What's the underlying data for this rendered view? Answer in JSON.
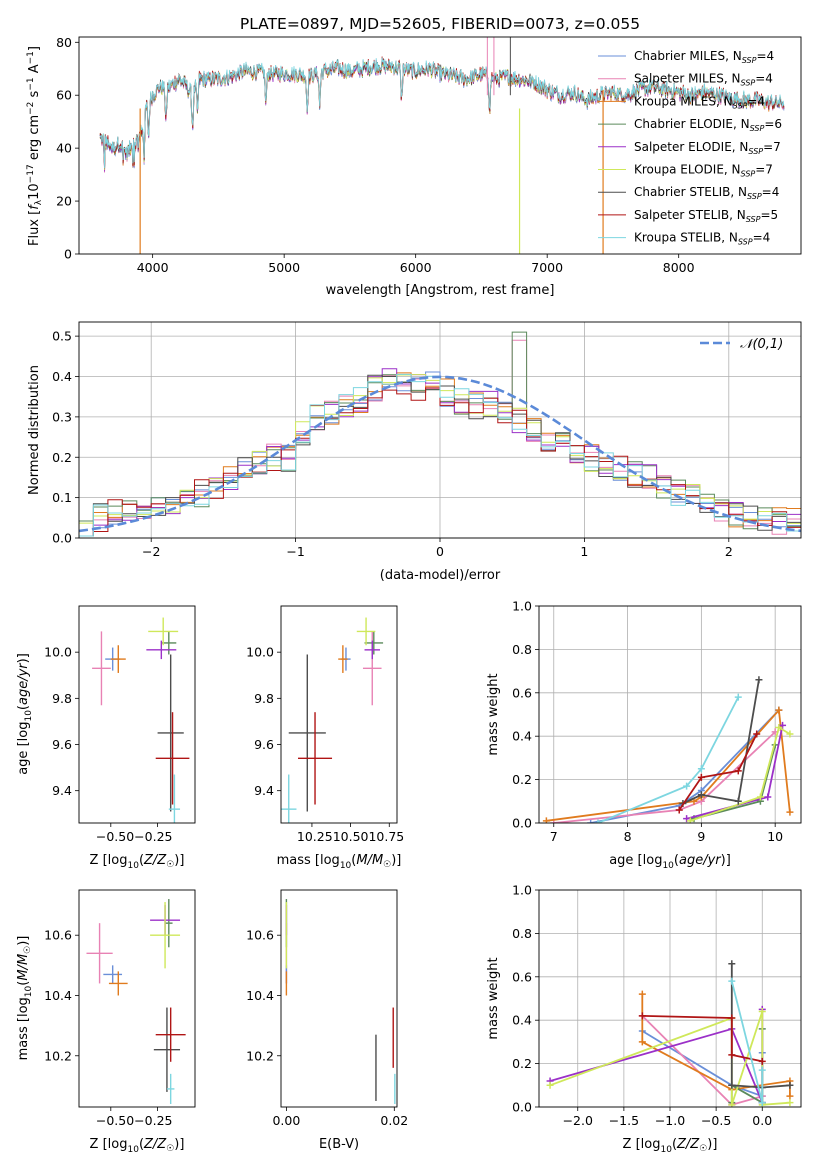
{
  "figure_title": "PLATE=0897, MJD=52605, FIBERID=0073, z=0.055",
  "colors": {
    "Chabrier MILES": "#6a8fd8",
    "Salpeter MILES": "#e882b4",
    "Kroupa MILES": "#e07b1e",
    "Chabrier ELODIE": "#5b8a5b",
    "Salpeter ELODIE": "#9b30c8",
    "Kroupa ELODIE": "#cfe85a",
    "Chabrier STELIB": "#4d4d4d",
    "Salpeter STELIB": "#b01515",
    "Kroupa STELIB": "#7dd6e0",
    "gaussian": "#5b8ad8"
  },
  "chart_data": [
    {
      "id": "spectrum",
      "type": "line",
      "xlabel": "wavelength [Angstrom, rest frame]",
      "ylabel": "Flux [f_λ 10^-17 erg cm^-2 s^-1 A^-1]",
      "ylabel_parts": [
        "Flux [",
        "f",
        "λ",
        "10",
        "−17",
        " erg cm",
        "−2",
        " s",
        "−1",
        " A",
        "−1",
        "]"
      ],
      "xlim": [
        3440,
        8930
      ],
      "ylim": [
        0,
        82
      ],
      "xticks": [
        4000,
        5000,
        6000,
        7000,
        8000
      ],
      "yticks": [
        0,
        20,
        40,
        60,
        80
      ],
      "legend_position": "top-right",
      "series": [
        {
          "name": "Chabrier MILES",
          "nssp": "4"
        },
        {
          "name": "Salpeter MILES",
          "nssp": "4"
        },
        {
          "name": "Kroupa MILES",
          "nssp": "4"
        },
        {
          "name": "Chabrier ELODIE",
          "nssp": "6"
        },
        {
          "name": "Salpeter ELODIE",
          "nssp": "7"
        },
        {
          "name": "Kroupa ELODIE",
          "nssp": "7"
        },
        {
          "name": "Chabrier STELIB",
          "nssp": "4"
        },
        {
          "name": "Salpeter STELIB",
          "nssp": "5"
        },
        {
          "name": "Kroupa STELIB",
          "nssp": "4"
        }
      ],
      "envelope": {
        "x": [
          3600,
          3650,
          3700,
          3750,
          3800,
          3850,
          3900,
          3950,
          4000,
          4050,
          4100,
          4150,
          4200,
          4250,
          4300,
          4350,
          4400,
          4500,
          4600,
          4700,
          4800,
          4900,
          5000,
          5100,
          5200,
          5300,
          5400,
          5500,
          5600,
          5700,
          5800,
          5900,
          6000,
          6100,
          6200,
          6300,
          6400,
          6500,
          6600,
          6700,
          6800,
          6900,
          7000,
          7100,
          7200,
          7300,
          7400,
          7500,
          7600,
          7700,
          7800,
          7900,
          8000,
          8100,
          8200,
          8300,
          8400,
          8500,
          8600,
          8700,
          8800
        ],
        "y": [
          44,
          42,
          40,
          42,
          38,
          41,
          44,
          55,
          60,
          63,
          62,
          64,
          66,
          64,
          60,
          66,
          66,
          66,
          67,
          69,
          69,
          68,
          68,
          68,
          67,
          69,
          70,
          69,
          70,
          71,
          71,
          70,
          69,
          70,
          68,
          67,
          66,
          68,
          66,
          67,
          66,
          65,
          62,
          60,
          61,
          58,
          60,
          61,
          60,
          62,
          63,
          62,
          61,
          60,
          61,
          60,
          59,
          58,
          58,
          57,
          57
        ]
      },
      "absorption_lines": [
        3934,
        3969,
        4102,
        4304,
        4341,
        4861,
        5175,
        5270,
        5893,
        6563
      ],
      "spikes": [
        {
          "x": 6545,
          "top": 82,
          "bottom": 60,
          "series": "Salpeter MILES"
        },
        {
          "x": 6595,
          "top": 82,
          "bottom": 60,
          "series": "Salpeter MILES"
        },
        {
          "x": 6720,
          "top": 82,
          "bottom": 60,
          "series": "Chabrier STELIB"
        }
      ],
      "drops": [
        {
          "x": 3905,
          "series": "Kroupa MILES"
        },
        {
          "x": 6790,
          "series": "Kroupa ELODIE"
        },
        {
          "x": 7425,
          "series": "Kroupa MILES"
        }
      ]
    },
    {
      "id": "residual_hist",
      "type": "line",
      "xlabel": "(data-model)/error",
      "ylabel": "Normed distribution",
      "xlim": [
        -2.5,
        2.5
      ],
      "ylim": [
        0,
        0.535
      ],
      "xticks": [
        -2,
        -1,
        0,
        1,
        2
      ],
      "yticks": [
        0.0,
        0.1,
        0.2,
        0.3,
        0.4,
        0.5
      ],
      "grid": true,
      "legend_position": "top-right",
      "legend": "𝒩(0,1)",
      "bin_width": 0.1,
      "x_start": -2.5,
      "base_profile": [
        0.01,
        0.04,
        0.05,
        0.06,
        0.06,
        0.07,
        0.07,
        0.075,
        0.08,
        0.085,
        0.09,
        0.09,
        0.1,
        0.11,
        0.12,
        0.14,
        0.15,
        0.16,
        0.17,
        0.18,
        0.19,
        0.2,
        0.2,
        0.24,
        0.26,
        0.28,
        0.3,
        0.31,
        0.32,
        0.33,
        0.34,
        0.36,
        0.37,
        0.38,
        0.39,
        0.38,
        0.37,
        0.37,
        0.39,
        0.37,
        0.36,
        0.35,
        0.34,
        0.33,
        0.33,
        0.33,
        0.32,
        0.3,
        0.29,
        0.28,
        0.27,
        0.25,
        0.24,
        0.23,
        0.22,
        0.21,
        0.2,
        0.19,
        0.18,
        0.17,
        0.16,
        0.16,
        0.15,
        0.14,
        0.13,
        0.12,
        0.11,
        0.1,
        0.09,
        0.08,
        0.07,
        0.07,
        0.06,
        0.05,
        0.05,
        0.05,
        0.05,
        0.04,
        0.04,
        0.03
      ],
      "gaussian": {
        "mu": 0,
        "sigma": 1
      }
    },
    {
      "id": "age_vs_Z",
      "type": "scatter",
      "xlabel": "Z [log10(Z/Z☉)]",
      "ylabel": "age  [log10(age/yr)]",
      "xlim": [
        -0.67,
        -0.05
      ],
      "ylim": [
        9.26,
        10.2
      ],
      "xticks": [
        -0.5,
        -0.25
      ],
      "xtick_labels": [
        "−0.50",
        "−0.25"
      ],
      "yticks": [
        9.4,
        9.6,
        9.8,
        10.0
      ],
      "xtick_text": "−0.50−0.25",
      "points": [
        {
          "series": "Salpeter MILES",
          "x": -0.55,
          "y": 9.93,
          "xerr": 0.05,
          "yerr": 0.16
        },
        {
          "series": "Chabrier MILES",
          "x": -0.49,
          "y": 9.97,
          "xerr": 0.04,
          "yerr": 0.05
        },
        {
          "series": "Kroupa MILES",
          "x": -0.46,
          "y": 9.97,
          "xerr": 0.04,
          "yerr": 0.06
        },
        {
          "series": "Chabrier ELODIE",
          "x": -0.19,
          "y": 10.04,
          "xerr": 0.04,
          "yerr": 0.05
        },
        {
          "series": "Salpeter ELODIE",
          "x": -0.23,
          "y": 10.01,
          "xerr": 0.08,
          "yerr": 0.04
        },
        {
          "series": "Kroupa ELODIE",
          "x": -0.22,
          "y": 10.09,
          "xerr": 0.08,
          "yerr": 0.06
        },
        {
          "series": "Chabrier STELIB",
          "x": -0.18,
          "y": 9.65,
          "xerr": 0.07,
          "yerr": 0.34
        },
        {
          "series": "Salpeter STELIB",
          "x": -0.17,
          "y": 9.54,
          "xerr": 0.09,
          "yerr": 0.2
        },
        {
          "series": "Kroupa STELIB",
          "x": -0.16,
          "y": 9.32,
          "xerr": 0.03,
          "yerr": 0.15
        }
      ]
    },
    {
      "id": "age_vs_mass",
      "type": "scatter",
      "xlabel": "mass [log10(M/M☉)]",
      "xlim": [
        10.05,
        10.8
      ],
      "ylim": [
        9.26,
        10.2
      ],
      "xticks": [
        10.25,
        10.5,
        10.75
      ],
      "xtick_labels": [
        "10.25",
        "10.50",
        "10.75"
      ],
      "yticks": [
        9.4,
        9.6,
        9.8,
        10.0
      ],
      "xtick_text": "10.2510.5010.75",
      "points": [
        {
          "series": "Salpeter MILES",
          "x": 10.64,
          "y": 9.93,
          "xerr": 0.06,
          "yerr": 0.16
        },
        {
          "series": "Chabrier MILES",
          "x": 10.47,
          "y": 9.97,
          "xerr": 0.03,
          "yerr": 0.05
        },
        {
          "series": "Kroupa MILES",
          "x": 10.45,
          "y": 9.97,
          "xerr": 0.03,
          "yerr": 0.06
        },
        {
          "series": "Chabrier ELODIE",
          "x": 10.65,
          "y": 10.04,
          "xerr": 0.06,
          "yerr": 0.05
        },
        {
          "series": "Salpeter ELODIE",
          "x": 10.64,
          "y": 10.01,
          "xerr": 0.05,
          "yerr": 0.04
        },
        {
          "series": "Kroupa ELODIE",
          "x": 10.6,
          "y": 10.09,
          "xerr": 0.06,
          "yerr": 0.06
        },
        {
          "series": "Chabrier STELIB",
          "x": 10.22,
          "y": 9.65,
          "xerr": 0.12,
          "yerr": 0.34
        },
        {
          "series": "Salpeter STELIB",
          "x": 10.27,
          "y": 9.54,
          "xerr": 0.11,
          "yerr": 0.2
        },
        {
          "series": "Kroupa STELIB",
          "x": 10.1,
          "y": 9.32,
          "xerr": 0.05,
          "yerr": 0.15
        }
      ]
    },
    {
      "id": "weight_vs_age",
      "type": "line",
      "xlabel": "age  [log10(age/yr)]",
      "ylabel": "mass weight",
      "xlim": [
        6.8,
        10.35
      ],
      "ylim": [
        0,
        1.0
      ],
      "xticks": [
        7,
        8,
        9,
        10
      ],
      "yticks": [
        0.0,
        0.2,
        0.4,
        0.6,
        0.8,
        1.0
      ],
      "grid": true,
      "series": [
        {
          "name": "Chabrier MILES",
          "x": [
            7.5,
            8.7,
            9.0,
            10.05
          ],
          "y": [
            0.0,
            0.08,
            0.15,
            0.52
          ]
        },
        {
          "name": "Salpeter MILES",
          "x": [
            7.0,
            8.7,
            9.0,
            10.0
          ],
          "y": [
            0.0,
            0.06,
            0.1,
            0.42
          ]
        },
        {
          "name": "Kroupa MILES",
          "x": [
            6.9,
            8.9,
            9.0,
            10.05,
            10.2
          ],
          "y": [
            0.01,
            0.1,
            0.12,
            0.52,
            0.05
          ]
        },
        {
          "name": "Chabrier ELODIE",
          "x": [
            8.9,
            9.8,
            10.0
          ],
          "y": [
            0.02,
            0.1,
            0.36
          ]
        },
        {
          "name": "Salpeter ELODIE",
          "x": [
            8.8,
            9.9,
            10.1
          ],
          "y": [
            0.02,
            0.12,
            0.45
          ]
        },
        {
          "name": "Kroupa ELODIE",
          "x": [
            8.85,
            9.8,
            10.05,
            10.2
          ],
          "y": [
            0.01,
            0.12,
            0.44,
            0.41
          ]
        },
        {
          "name": "Chabrier STELIB",
          "x": [
            8.75,
            9.0,
            9.5,
            9.78
          ],
          "y": [
            0.09,
            0.13,
            0.1,
            0.66
          ]
        },
        {
          "name": "Salpeter STELIB",
          "x": [
            8.7,
            9.0,
            9.5,
            9.75
          ],
          "y": [
            0.06,
            0.21,
            0.24,
            0.41
          ]
        },
        {
          "name": "Kroupa STELIB",
          "x": [
            7.6,
            8.8,
            9.0,
            9.5
          ],
          "y": [
            0.0,
            0.17,
            0.25,
            0.58
          ]
        }
      ]
    },
    {
      "id": "mass_vs_Z",
      "type": "scatter",
      "xlabel": "Z [log10(Z/Z☉)]",
      "ylabel": "mass [log10(M/M☉)]",
      "xlim": [
        -0.67,
        -0.05
      ],
      "ylim": [
        10.03,
        10.75
      ],
      "xticks": [
        -0.5,
        -0.25
      ],
      "xtick_labels": [
        "−0.50",
        "−0.25"
      ],
      "yticks": [
        10.2,
        10.4,
        10.6
      ],
      "xtick_text": "−0.50−0.25",
      "points": [
        {
          "series": "Salpeter MILES",
          "x": -0.56,
          "y": 10.54,
          "xerr": 0.07,
          "yerr": 0.1
        },
        {
          "series": "Chabrier MILES",
          "x": -0.49,
          "y": 10.47,
          "xerr": 0.05,
          "yerr": 0.03
        },
        {
          "series": "Kroupa MILES",
          "x": -0.46,
          "y": 10.44,
          "xerr": 0.05,
          "yerr": 0.04
        },
        {
          "series": "Chabrier ELODIE",
          "x": -0.19,
          "y": 10.64,
          "xerr": 0.02,
          "yerr": 0.08
        },
        {
          "series": "Salpeter ELODIE",
          "x": -0.21,
          "y": 10.65,
          "xerr": 0.08,
          "yerr": 0.05
        },
        {
          "series": "Kroupa ELODIE",
          "x": -0.21,
          "y": 10.6,
          "xerr": 0.08,
          "yerr": 0.11
        },
        {
          "series": "Chabrier STELIB",
          "x": -0.2,
          "y": 10.22,
          "xerr": 0.07,
          "yerr": 0.14
        },
        {
          "series": "Salpeter STELIB",
          "x": -0.18,
          "y": 10.27,
          "xerr": 0.08,
          "yerr": 0.09
        },
        {
          "series": "Kroupa STELIB",
          "x": -0.18,
          "y": 10.09,
          "xerr": 0.02,
          "yerr": 0.05
        }
      ]
    },
    {
      "id": "mass_vs_ebv",
      "type": "scatter",
      "xlabel": "E(B-V)",
      "xlim": [
        -0.001,
        0.0205
      ],
      "ylim": [
        10.03,
        10.75
      ],
      "xticks": [
        0.0,
        0.02
      ],
      "xtick_labels": [
        "0.00",
        "0.02"
      ],
      "yticks": [
        10.2,
        10.4,
        10.6
      ],
      "points": [
        {
          "series": "Salpeter MILES",
          "x": 0.0,
          "y": 10.54,
          "xerr": 0.0,
          "yerr": 0.1
        },
        {
          "series": "Chabrier MILES",
          "x": 0.0,
          "y": 10.47,
          "xerr": 0.0,
          "yerr": 0.03
        },
        {
          "series": "Kroupa MILES",
          "x": 0.0,
          "y": 10.44,
          "xerr": 0.0,
          "yerr": 0.04
        },
        {
          "series": "Chabrier ELODIE",
          "x": 0.0,
          "y": 10.64,
          "xerr": 0.0,
          "yerr": 0.08
        },
        {
          "series": "Salpeter ELODIE",
          "x": 0.0,
          "y": 10.65,
          "xerr": 0.0,
          "yerr": 0.05
        },
        {
          "series": "Kroupa ELODIE",
          "x": 0.0,
          "y": 10.6,
          "xerr": 0.0,
          "yerr": 0.11
        },
        {
          "series": "Chabrier STELIB",
          "x": 0.0166,
          "y": 10.16,
          "xerr": 0.0,
          "yerr": 0.11
        },
        {
          "series": "Salpeter STELIB",
          "x": 0.0198,
          "y": 10.26,
          "xerr": 0.0,
          "yerr": 0.1
        },
        {
          "series": "Kroupa STELIB",
          "x": 0.0201,
          "y": 10.09,
          "xerr": 0.0,
          "yerr": 0.05
        }
      ]
    },
    {
      "id": "weight_vs_Z",
      "type": "line",
      "xlabel": "Z [log10(Z/Z☉)]",
      "ylabel": "mass weight",
      "xlim": [
        -2.42,
        0.42
      ],
      "ylim": [
        0,
        1.0
      ],
      "xticks": [
        -2.0,
        -1.5,
        -1.0,
        -0.5,
        0.0
      ],
      "xtick_labels": [
        "−2.0",
        "−1.5",
        "−1.0",
        "−0.5",
        "0.0"
      ],
      "yticks": [
        0.0,
        0.2,
        0.4,
        0.6,
        0.8,
        1.0
      ],
      "grid": true,
      "series": [
        {
          "name": "Chabrier MILES",
          "x": [
            -1.3,
            -0.33,
            0.0,
            0.0
          ],
          "y": [
            0.35,
            0.1,
            0.05,
            0.25
          ]
        },
        {
          "name": "Salpeter MILES",
          "x": [
            -1.3,
            -0.33,
            0.0
          ],
          "y": [
            0.42,
            0.01,
            0.05
          ]
        },
        {
          "name": "Kroupa MILES",
          "x": [
            -1.3,
            -1.3,
            -0.33,
            0.3,
            0.3
          ],
          "y": [
            0.52,
            0.3,
            0.08,
            0.12,
            0.05
          ]
        },
        {
          "name": "Chabrier ELODIE",
          "x": [
            -0.33,
            -0.33,
            0.0,
            0.0
          ],
          "y": [
            0.02,
            0.1,
            0.02,
            0.36
          ]
        },
        {
          "name": "Salpeter ELODIE",
          "x": [
            -2.3,
            -0.33,
            0.0,
            0.0
          ],
          "y": [
            0.12,
            0.36,
            0.02,
            0.45
          ]
        },
        {
          "name": "Kroupa ELODIE",
          "x": [
            -2.3,
            -0.33,
            -0.33,
            0.0,
            0.0,
            0.3
          ],
          "y": [
            0.1,
            0.41,
            0.01,
            0.44,
            0.01,
            0.02
          ]
        },
        {
          "name": "Chabrier STELIB",
          "x": [
            -0.33,
            -0.33,
            0.0,
            0.3
          ],
          "y": [
            0.66,
            0.1,
            0.09,
            0.1
          ]
        },
        {
          "name": "Salpeter STELIB",
          "x": [
            -1.3,
            -0.33,
            -0.33,
            0.0
          ],
          "y": [
            0.42,
            0.41,
            0.24,
            0.21
          ]
        },
        {
          "name": "Kroupa STELIB",
          "x": [
            -0.33,
            0.0,
            0.0
          ],
          "y": [
            0.58,
            0.02,
            0.17
          ]
        }
      ]
    }
  ]
}
